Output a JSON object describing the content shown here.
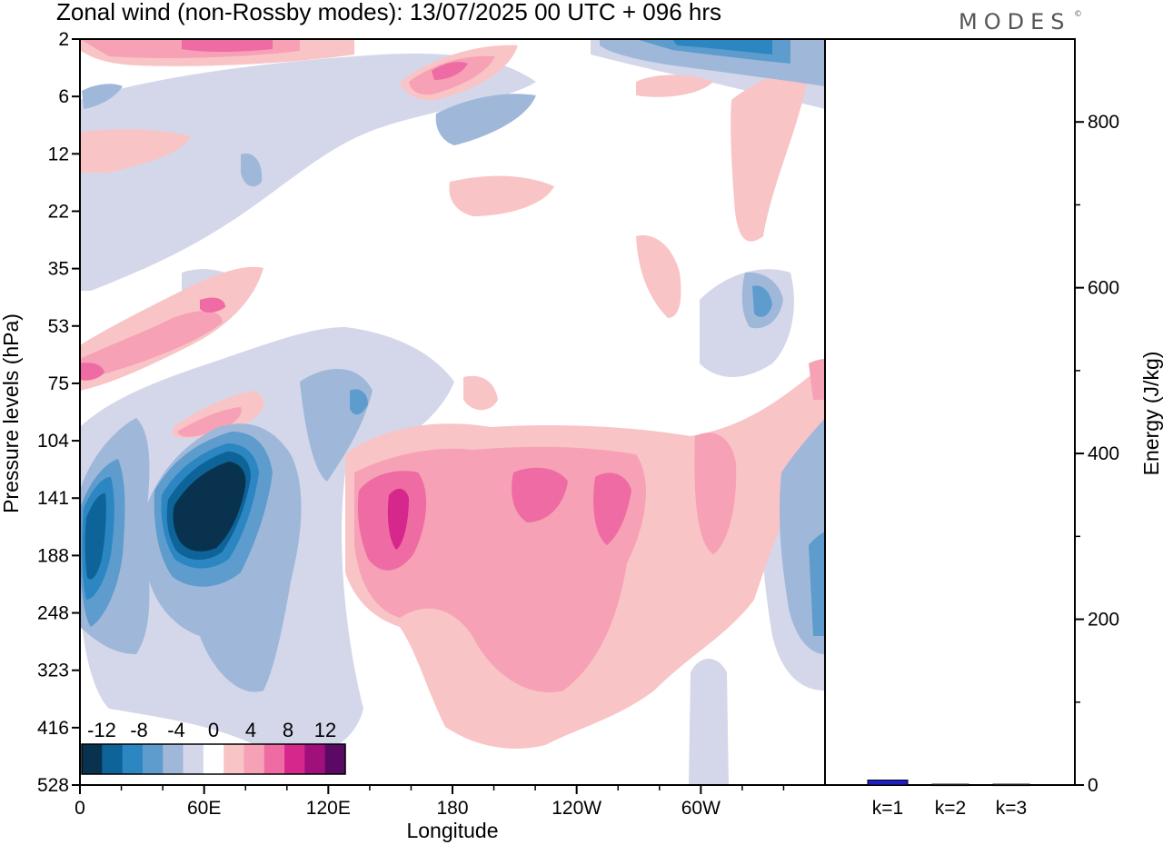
{
  "title": "Zonal wind (non-Rossby modes):  13/07/2025  00 UTC  + 096 hrs",
  "logo": "MODES",
  "logo_mark": "©",
  "chart_data": [
    {
      "type": "heatmap",
      "xlabel": "Longitude",
      "ylabel": "Pressure levels (hPa)",
      "x_ticks": [
        "0",
        "60E",
        "120E",
        "180",
        "120W",
        "60W"
      ],
      "x_tick_degrees": [
        0,
        60,
        120,
        180,
        240,
        300
      ],
      "xlim_degrees": [
        0,
        360
      ],
      "y_ticks": [
        "2",
        "6",
        "12",
        "22",
        "35",
        "53",
        "75",
        "104",
        "141",
        "188",
        "248",
        "323",
        "416",
        "528"
      ],
      "colorbar": {
        "tick_labels": [
          "-12",
          "-8",
          "-4",
          "0",
          "4",
          "8",
          "12"
        ],
        "colors": [
          "#08324d",
          "#0e6398",
          "#2b86c2",
          "#5d9ccc",
          "#9fb8da",
          "#d4d7ea",
          "#ffffff",
          "#f9c4c6",
          "#f6a1b5",
          "#ee6ca3",
          "#d6278c",
          "#a00f7c",
          "#5a0a64"
        ]
      },
      "features": [
        {
          "kind": "negative-core",
          "lon_center": 50,
          "level_center": "141",
          "max_abs": 12
        },
        {
          "kind": "negative",
          "lon_center": 8,
          "level_center": "188",
          "max_abs": 8
        },
        {
          "kind": "positive",
          "lon_center": 148,
          "level_center": "141",
          "max_abs": 8
        },
        {
          "kind": "positive",
          "lon_center": 225,
          "level_center": "141",
          "max_abs": 6
        },
        {
          "kind": "positive",
          "lon_center": 172,
          "level_center": "6",
          "max_abs": 6
        }
      ]
    },
    {
      "type": "bar",
      "ylabel": "Energy (J/kg)",
      "categories": [
        "k=1",
        "k=2",
        "k=3"
      ],
      "values": [
        6,
        1,
        1
      ],
      "ylim": [
        0,
        900
      ],
      "y_ticks": [
        "0",
        "200",
        "400",
        "600",
        "800"
      ],
      "bar_color": "#1e1ec8"
    }
  ]
}
